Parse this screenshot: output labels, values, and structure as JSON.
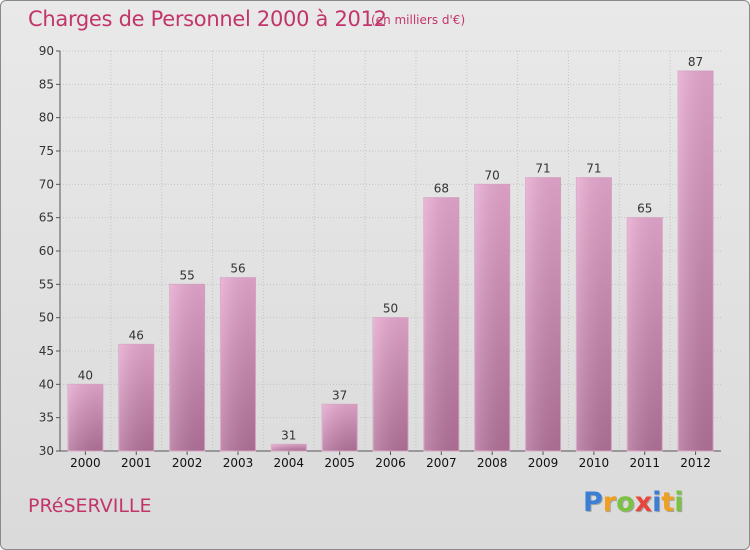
{
  "title": "Charges de Personnel 2000 à 2012",
  "subtitle": "(en milliers d'€)",
  "commune": "PRéSERVILLE",
  "logo": {
    "letters": [
      "P",
      "r",
      "o",
      "x",
      "i",
      "t",
      "i"
    ],
    "colors": [
      "#3a7fd5",
      "#f0a020",
      "#7cc242",
      "#e8463c",
      "#3a7fd5",
      "#f0a020",
      "#7cc242"
    ]
  },
  "colors": {
    "title": "#c2356b",
    "bar_top": "#e7a8cf",
    "bar_bottom": "#b3729a"
  },
  "chart_data": {
    "type": "bar",
    "title": "Charges de Personnel 2000 à 2012",
    "subtitle": "(en milliers d'€)",
    "categories": [
      "2000",
      "2001",
      "2002",
      "2003",
      "2004",
      "2005",
      "2006",
      "2007",
      "2008",
      "2009",
      "2010",
      "2011",
      "2012"
    ],
    "values": [
      40,
      46,
      55,
      56,
      31,
      37,
      50,
      68,
      70,
      71,
      71,
      65,
      87
    ],
    "ylim": [
      30,
      90
    ],
    "yticks": [
      30,
      35,
      40,
      45,
      50,
      55,
      60,
      65,
      70,
      75,
      80,
      85,
      90
    ],
    "grid": true,
    "legend": "none"
  }
}
